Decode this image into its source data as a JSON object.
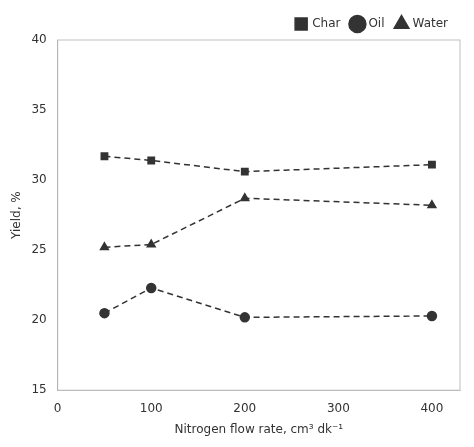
{
  "chart_data": {
    "type": "line",
    "x": [
      50,
      100,
      200,
      400
    ],
    "series": [
      {
        "name": "Char",
        "color": "#333333",
        "marker": "square",
        "values": [
          31.7,
          31.4,
          30.6,
          31.1
        ]
      },
      {
        "name": "Oil",
        "color": "#333333",
        "marker": "circle",
        "values": [
          20.5,
          22.3,
          20.2,
          20.3
        ]
      },
      {
        "name": "Water",
        "color": "#333333",
        "marker": "triangle",
        "values": [
          25.2,
          25.4,
          28.7,
          28.2
        ]
      }
    ],
    "line_style": "dashed",
    "xlabel": "Nitrogen flow rate, cm³ dk⁻¹",
    "ylabel": "Yield, %",
    "xlim": [
      0,
      430
    ],
    "ylim": [
      15,
      40
    ],
    "xticks": [
      0,
      100,
      200,
      300,
      400
    ],
    "yticks": [
      15,
      20,
      25,
      30,
      35,
      40
    ],
    "grid": false,
    "legend": "upper right"
  }
}
